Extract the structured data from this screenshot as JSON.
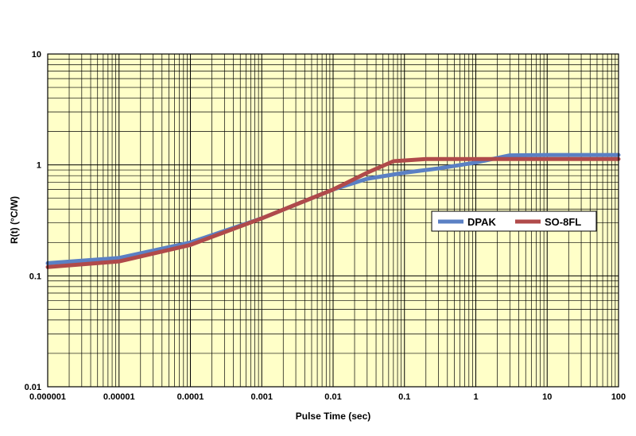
{
  "chart_data": {
    "type": "line",
    "title": "",
    "xlabel": "Pulse Time (sec)",
    "ylabel": "R(t) (°C/W)",
    "xscale": "log",
    "yscale": "log",
    "xlim": [
      1e-06,
      100
    ],
    "ylim": [
      0.01,
      10
    ],
    "x_ticks": [
      1e-06,
      1e-05,
      0.0001,
      0.001,
      0.01,
      0.1,
      1,
      10,
      100
    ],
    "x_tick_labels": [
      "0.000001",
      "0.00001",
      "0.0001",
      "0.001",
      "0.01",
      "0.1",
      "1",
      "10",
      "100"
    ],
    "y_ticks": [
      0.01,
      0.1,
      1,
      10
    ],
    "y_tick_labels": [
      "0.01",
      "0.1",
      "1",
      "10"
    ],
    "grid": true,
    "plot_background": "#ffffc8",
    "legend_position": "right",
    "series": [
      {
        "name": "DPAK",
        "color": "#5b80c4",
        "points": [
          [
            1e-06,
            0.13
          ],
          [
            1e-05,
            0.145
          ],
          [
            0.0001,
            0.2
          ],
          [
            0.001,
            0.33
          ],
          [
            0.01,
            0.6
          ],
          [
            0.03,
            0.75
          ],
          [
            0.1,
            0.85
          ],
          [
            0.3,
            0.93
          ],
          [
            1,
            1.05
          ],
          [
            3,
            1.22
          ],
          [
            10,
            1.23
          ],
          [
            100,
            1.23
          ]
        ]
      },
      {
        "name": "SO-8FL",
        "color": "#b04a4a",
        "points": [
          [
            1e-06,
            0.12
          ],
          [
            1e-05,
            0.135
          ],
          [
            0.0001,
            0.19
          ],
          [
            0.001,
            0.33
          ],
          [
            0.01,
            0.6
          ],
          [
            0.03,
            0.85
          ],
          [
            0.07,
            1.08
          ],
          [
            0.2,
            1.13
          ],
          [
            1,
            1.13
          ],
          [
            10,
            1.13
          ],
          [
            100,
            1.13
          ]
        ]
      }
    ]
  }
}
